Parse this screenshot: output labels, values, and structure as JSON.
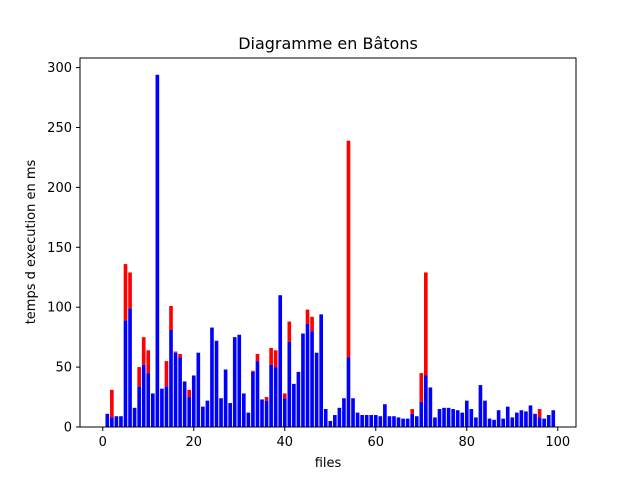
{
  "chart_data": {
    "type": "bar",
    "title": "Diagramme en Bâtons",
    "xlabel": "files",
    "ylabel": "temps d execution en ms",
    "xlim": [
      -5,
      104
    ],
    "ylim": [
      0,
      308
    ],
    "xticks": [
      0,
      20,
      40,
      60,
      80,
      100
    ],
    "yticks": [
      0,
      50,
      100,
      150,
      200,
      250,
      300
    ],
    "grid": false,
    "stacked": true,
    "x": [
      1,
      2,
      3,
      4,
      5,
      6,
      7,
      8,
      9,
      10,
      11,
      12,
      13,
      14,
      15,
      16,
      17,
      18,
      19,
      20,
      21,
      22,
      23,
      24,
      25,
      26,
      27,
      28,
      29,
      30,
      31,
      32,
      33,
      34,
      35,
      36,
      37,
      38,
      39,
      40,
      41,
      42,
      43,
      44,
      45,
      46,
      47,
      48,
      49,
      50,
      51,
      52,
      53,
      54,
      55,
      56,
      57,
      58,
      59,
      60,
      61,
      62,
      63,
      64,
      65,
      66,
      67,
      68,
      69,
      70,
      71,
      72,
      73,
      74,
      75,
      76,
      77,
      78,
      79,
      80,
      81,
      82,
      83,
      84,
      85,
      86,
      87,
      88,
      89,
      90,
      91,
      92,
      93,
      94,
      95,
      96,
      97,
      98,
      99
    ],
    "series": [
      {
        "color": "#0000ff",
        "values": [
          11,
          8,
          9,
          9,
          89,
          99,
          16,
          34,
          52,
          45,
          28,
          294,
          32,
          34,
          81,
          62,
          58,
          38,
          25,
          43,
          62,
          17,
          22,
          83,
          72,
          24,
          48,
          20,
          75,
          77,
          28,
          12,
          46,
          55,
          23,
          22,
          52,
          50,
          110,
          24,
          71,
          36,
          46,
          78,
          86,
          80,
          62,
          94,
          15,
          5,
          10,
          16,
          24,
          58,
          24,
          12,
          10,
          10,
          10,
          10,
          9,
          19,
          9,
          9,
          8,
          7,
          7,
          11,
          9,
          21,
          43,
          33,
          8,
          15,
          16,
          16,
          15,
          14,
          12,
          22,
          15,
          8,
          35,
          22,
          7,
          6,
          14,
          7,
          17,
          8,
          12,
          14,
          13,
          18,
          11,
          8,
          7,
          10,
          14
        ],
        "edge_color": "#0000ff"
      },
      {
        "color": "#ff0000",
        "values": [
          0,
          23,
          0,
          0,
          47,
          30,
          0,
          16,
          23,
          19,
          0,
          0,
          0,
          21,
          20,
          1,
          3,
          0,
          6,
          0,
          0,
          0,
          0,
          0,
          0,
          0,
          0,
          0,
          0,
          0,
          0,
          0,
          1,
          6,
          0,
          3,
          14,
          14,
          0,
          4,
          17,
          0,
          0,
          0,
          12,
          12,
          0,
          0,
          0,
          0,
          0,
          0,
          0,
          181,
          0,
          0,
          0,
          0,
          0,
          0,
          0,
          0,
          0,
          0,
          0,
          0,
          0,
          4,
          0,
          24,
          86,
          0,
          0,
          0,
          0,
          0,
          0,
          0,
          0,
          0,
          0,
          0,
          0,
          0,
          0,
          0,
          0,
          0,
          0,
          0,
          0,
          0,
          0,
          0,
          0,
          7,
          0,
          0,
          0
        ]
      }
    ]
  }
}
